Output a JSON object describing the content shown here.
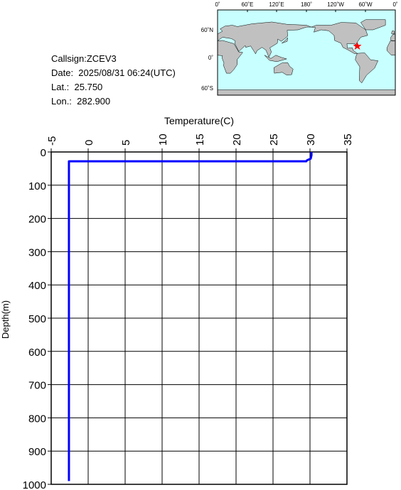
{
  "header": {
    "callsign": "Callsign:ZCEV3",
    "date": "Date:  2025/08/31 06:24(UTC)",
    "lat": "Lat.:  25.750",
    "lon": "Lon.:  282.900"
  },
  "map": {
    "lon_labels": [
      "0˚",
      "60˚E",
      "120˚E",
      "180˚",
      "120˚W",
      "60˚W",
      "0˚"
    ],
    "lat_labels": [
      "60˚N",
      "0˚",
      "60˚S"
    ]
  },
  "chart_data": {
    "type": "line",
    "x_label": "Temperature(C)",
    "y_label": "Depth(m)",
    "xlim": [
      -5,
      35
    ],
    "ylim": [
      0,
      1000
    ],
    "xticks": [
      -5,
      0,
      5,
      10,
      15,
      20,
      25,
      30,
      35
    ],
    "yticks": [
      0,
      100,
      200,
      300,
      400,
      500,
      600,
      700,
      800,
      900,
      1000
    ],
    "grid": true,
    "series": [
      {
        "color": "#0000ff",
        "x": [
          30.2,
          30.2,
          30.1,
          29.6,
          29.5,
          -2.6,
          -2.6,
          -2.6
        ],
        "values": [
          0,
          10,
          20,
          25,
          28,
          28,
          500,
          990
        ]
      }
    ]
  }
}
